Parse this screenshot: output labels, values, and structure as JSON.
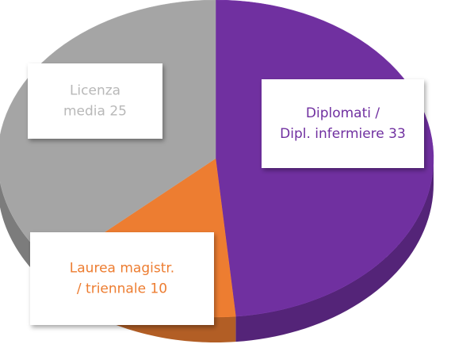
{
  "chart_data": {
    "type": "pie",
    "categories": [
      "Diplomati / Dipl. infermiere",
      "Laurea magistr. / triennale",
      "Licenza media"
    ],
    "values": [
      33,
      10,
      25
    ],
    "colors": [
      "#7030a0",
      "#ed7d31",
      "#a5a5a5"
    ],
    "label_colors": [
      "#7030a0",
      "#ed7d31",
      "#b8b8b8"
    ]
  }
}
